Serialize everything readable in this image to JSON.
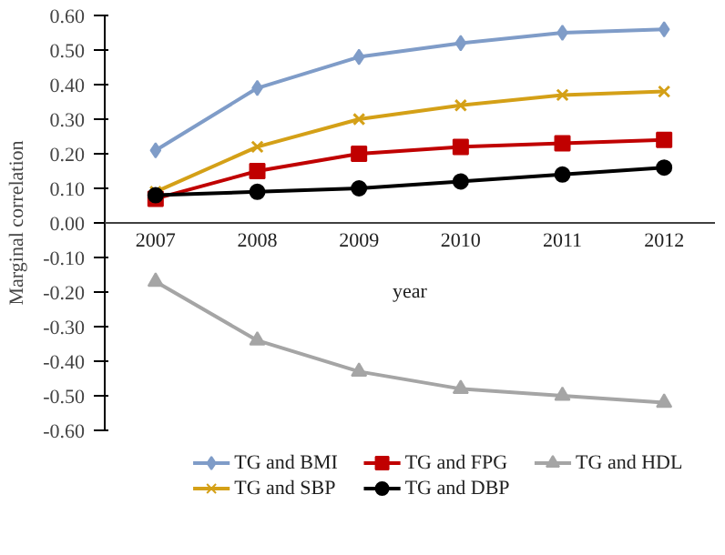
{
  "chart_data": {
    "type": "line",
    "xlabel": "year",
    "ylabel": "Marginal correlation",
    "categories": [
      "2007",
      "2008",
      "2009",
      "2010",
      "2011",
      "2012"
    ],
    "series": [
      {
        "name": "TG and BMI",
        "color": "#7f9cc8",
        "marker": "diamond",
        "values": [
          0.21,
          0.39,
          0.48,
          0.52,
          0.55,
          0.56
        ]
      },
      {
        "name": "TG and FPG",
        "color": "#c00000",
        "marker": "square",
        "values": [
          0.07,
          0.15,
          0.2,
          0.22,
          0.23,
          0.24
        ]
      },
      {
        "name": "TG and HDL",
        "color": "#a5a5a5",
        "marker": "triangle",
        "values": [
          -0.17,
          -0.34,
          -0.43,
          -0.48,
          -0.5,
          -0.52
        ]
      },
      {
        "name": "TG and SBP",
        "color": "#d4a017",
        "marker": "cross",
        "values": [
          0.09,
          0.22,
          0.3,
          0.34,
          0.37,
          0.38
        ]
      },
      {
        "name": "TG and DBP",
        "color": "#000000",
        "marker": "circle",
        "values": [
          0.08,
          0.09,
          0.1,
          0.12,
          0.14,
          0.16
        ]
      }
    ],
    "ylim": [
      -0.6,
      0.6
    ],
    "yticks": [
      {
        "value": -0.6,
        "label": "-0.60"
      },
      {
        "value": -0.5,
        "label": "-0.50"
      },
      {
        "value": -0.4,
        "label": "-0.40"
      },
      {
        "value": -0.3,
        "label": "-0.30"
      },
      {
        "value": -0.2,
        "label": "-0.20"
      },
      {
        "value": -0.1,
        "label": "-0.10"
      },
      {
        "value": 0,
        "label": "0.00"
      },
      {
        "value": 0.1,
        "label": "0.10"
      },
      {
        "value": 0.2,
        "label": "0.20"
      },
      {
        "value": 0.3,
        "label": "0.30"
      },
      {
        "value": 0.4,
        "label": "0.40"
      },
      {
        "value": 0.5,
        "label": "0.50"
      },
      {
        "value": 0.6,
        "label": "0.60"
      }
    ],
    "grid": false,
    "legend": "bottom",
    "line_style": "solid"
  }
}
